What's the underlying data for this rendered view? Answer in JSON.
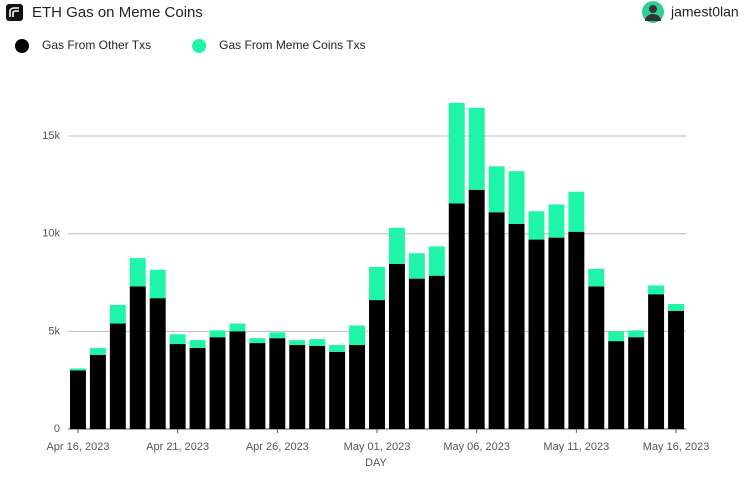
{
  "header": {
    "title": "ETH Gas on Meme Coins",
    "user": "jamest0lan"
  },
  "chart_data": {
    "type": "stacked-bar",
    "x_label": "DAY",
    "categories": [
      "Apr 16, 2023",
      null,
      null,
      null,
      null,
      "Apr 21, 2023",
      null,
      null,
      null,
      null,
      "Apr 26, 2023",
      null,
      null,
      null,
      null,
      "May 01, 2023",
      null,
      null,
      null,
      null,
      "May 06, 2023",
      null,
      null,
      null,
      null,
      "May 11, 2023",
      null,
      null,
      null,
      null,
      "May 16, 2023"
    ],
    "series": [
      {
        "name": "Gas From Other Txs",
        "color": "#000000",
        "values": [
          3000,
          3800,
          5400,
          7300,
          6700,
          4350,
          4150,
          4700,
          5000,
          4400,
          4650,
          4300,
          4250,
          3950,
          4300,
          6600,
          8450,
          7700,
          7850,
          11550,
          12250,
          11100,
          10500,
          9700,
          9800,
          10100,
          7300,
          4500,
          4700,
          6900,
          6050
        ]
      },
      {
        "name": "Gas From Meme Coins Txs",
        "color": "#1ff5a6",
        "values": [
          100,
          350,
          950,
          1450,
          1450,
          500,
          400,
          350,
          400,
          250,
          300,
          250,
          350,
          350,
          1000,
          1700,
          1850,
          1300,
          1500,
          5150,
          4200,
          2350,
          2700,
          1450,
          1700,
          2050,
          900,
          500,
          350,
          450,
          350
        ]
      }
    ],
    "ylim": [
      0,
      17000
    ],
    "yticks": [
      0,
      {
        "value": 5000,
        "label": "5k"
      },
      {
        "value": 10000,
        "label": "10k"
      },
      {
        "value": 15000,
        "label": "15k"
      }
    ],
    "grid": true
  }
}
